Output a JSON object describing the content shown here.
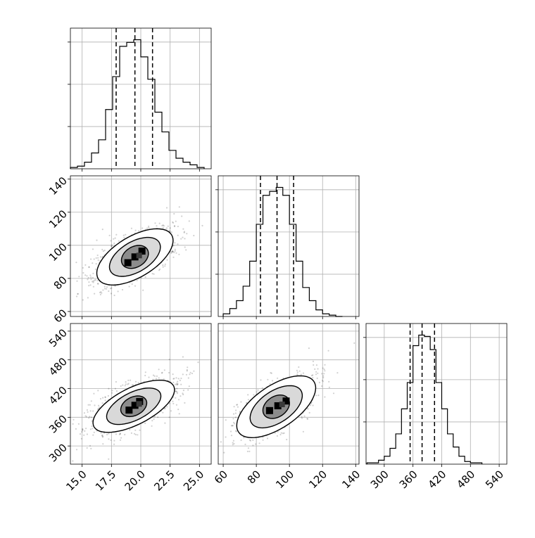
{
  "chart_data": {
    "type": "corner",
    "grid": true,
    "parameters": [
      {
        "range": [
          14,
          26
        ],
        "ticks": [
          15.0,
          17.5,
          20.0,
          22.5,
          25.0
        ],
        "tick_labels": [
          "15.0",
          "17.5",
          "20.0",
          "22.5",
          "25.0"
        ],
        "quantiles": [
          17.9,
          19.5,
          21.0
        ]
      },
      {
        "range": [
          57,
          142
        ],
        "ticks": [
          60,
          80,
          100,
          120,
          140
        ],
        "tick_labels": [
          "60",
          "80",
          "100",
          "120",
          "140"
        ],
        "quantiles": [
          82.5,
          92.5,
          102.5
        ]
      },
      {
        "range": [
          262,
          556
        ],
        "ticks": [
          300,
          360,
          420,
          480,
          540
        ],
        "tick_labels": [
          "300",
          "360",
          "420",
          "480",
          "540"
        ],
        "quantiles": [
          354,
          379,
          405
        ]
      }
    ],
    "histograms": [
      {
        "edges": [
          14.0,
          14.6,
          15.2,
          15.8,
          16.4,
          17.0,
          17.6,
          18.2,
          18.8,
          19.4,
          20.0,
          20.6,
          21.2,
          21.8,
          22.4,
          23.0,
          23.6,
          24.2,
          24.8,
          25.4
        ],
        "counts": [
          1,
          2,
          5,
          12,
          22,
          45,
          70,
          93,
          96,
          98,
          85,
          68,
          43,
          28,
          14,
          8,
          5,
          3,
          1
        ]
      },
      {
        "edges": [
          60,
          64,
          68,
          72,
          76,
          80,
          84,
          88,
          92,
          96,
          100,
          104,
          108,
          112,
          116,
          120,
          124,
          128,
          132
        ],
        "counts": [
          2,
          6,
          12,
          23,
          42,
          70,
          92,
          95,
          98,
          92,
          70,
          42,
          22,
          12,
          5,
          2,
          1,
          0
        ]
      },
      {
        "edges": [
          264,
          276,
          288,
          300,
          312,
          324,
          336,
          348,
          360,
          372,
          384,
          396,
          408,
          420,
          432,
          444,
          456,
          468,
          480,
          492,
          504
        ],
        "counts": [
          1,
          1,
          3,
          6,
          12,
          23,
          42,
          62,
          90,
          98,
          97,
          87,
          62,
          42,
          23,
          13,
          6,
          2,
          1,
          1
        ]
      }
    ],
    "contours": [
      {
        "x_param": 0,
        "y_param": 1,
        "center": [
          19.5,
          93
        ],
        "angle_deg": 31,
        "levels": [
          {
            "a": 1.1,
            "b": 0.78
          },
          {
            "a": 2.15,
            "b": 1.15
          },
          {
            "a": 3.25,
            "b": 1.55
          }
        ],
        "core": [
          [
            18.9,
            89.5
          ],
          [
            19.5,
            93
          ],
          [
            20.1,
            96.5
          ]
        ]
      },
      {
        "x_param": 0,
        "y_param": 2,
        "center": [
          19.4,
          383
        ],
        "angle_deg": 27,
        "levels": [
          {
            "a": 1.05,
            "b": 0.7
          },
          {
            "a": 2.25,
            "b": 1.05
          },
          {
            "a": 3.4,
            "b": 1.4
          }
        ],
        "core": [
          [
            19.0,
            375
          ],
          [
            19.5,
            385
          ],
          [
            19.9,
            393
          ]
        ]
      },
      {
        "x_param": 1,
        "y_param": 2,
        "center": [
          92,
          382
        ],
        "angle_deg": 34,
        "levels": [
          {
            "a": 1.1,
            "b": 0.78
          },
          {
            "a": 2.25,
            "b": 1.2
          },
          {
            "a": 3.45,
            "b": 1.62
          }
        ],
        "core": [
          [
            88,
            374
          ],
          [
            93,
            384
          ],
          [
            98,
            394
          ]
        ]
      }
    ]
  }
}
